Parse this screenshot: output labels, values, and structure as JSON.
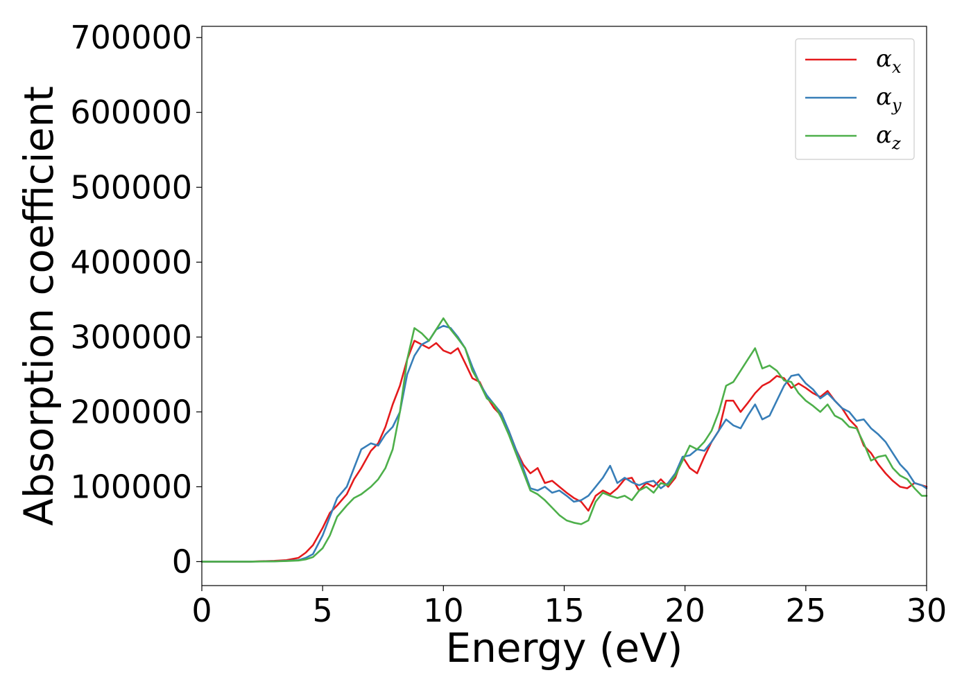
{
  "chart_data": {
    "type": "line",
    "title": "",
    "xlabel": "Energy (eV)",
    "ylabel": "Absorption coefficient",
    "xlim": [
      0,
      30
    ],
    "ylim": [
      -32000,
      715000
    ],
    "xticks": [
      0,
      5,
      10,
      15,
      20,
      25,
      30
    ],
    "yticks": [
      0,
      100000,
      200000,
      300000,
      400000,
      500000,
      600000,
      700000
    ],
    "grid": false,
    "legend_position": "top-right",
    "series": [
      {
        "name": "αx",
        "legend_base": "α",
        "legend_sub": "x",
        "color": "#e41a1c",
        "x": [
          0,
          1,
          2,
          3,
          3.5,
          4,
          4.3,
          4.6,
          5,
          5.3,
          5.6,
          6,
          6.3,
          6.6,
          7,
          7.3,
          7.6,
          7.9,
          8.2,
          8.5,
          8.8,
          9.1,
          9.4,
          9.7,
          10,
          10.3,
          10.6,
          10.9,
          11.2,
          11.5,
          11.8,
          12.1,
          12.4,
          12.7,
          13,
          13.3,
          13.6,
          13.9,
          14.2,
          14.5,
          14.8,
          15.1,
          15.4,
          15.7,
          16,
          16.3,
          16.6,
          16.9,
          17.2,
          17.5,
          17.8,
          18.1,
          18.4,
          18.7,
          19,
          19.3,
          19.6,
          19.9,
          20.2,
          20.5,
          20.8,
          21.1,
          21.4,
          21.7,
          22,
          22.3,
          22.6,
          22.9,
          23.2,
          23.5,
          23.8,
          24.1,
          24.4,
          24.7,
          25,
          25.3,
          25.6,
          25.9,
          26.2,
          26.5,
          26.8,
          27.1,
          27.4,
          27.7,
          28,
          28.3,
          28.6,
          28.9,
          29.2,
          29.5,
          29.8,
          30
        ],
        "y": [
          0,
          0,
          0,
          1000,
          2000,
          5000,
          12000,
          22000,
          45000,
          65000,
          75000,
          90000,
          110000,
          125000,
          148000,
          158000,
          180000,
          210000,
          235000,
          270000,
          295000,
          290000,
          285000,
          292000,
          282000,
          278000,
          285000,
          265000,
          245000,
          240000,
          220000,
          205000,
          195000,
          175000,
          150000,
          130000,
          118000,
          125000,
          105000,
          108000,
          100000,
          92000,
          85000,
          80000,
          68000,
          88000,
          95000,
          90000,
          98000,
          110000,
          112000,
          95000,
          105000,
          100000,
          110000,
          100000,
          112000,
          140000,
          125000,
          118000,
          140000,
          160000,
          175000,
          215000,
          215000,
          200000,
          212000,
          225000,
          235000,
          240000,
          248000,
          245000,
          232000,
          238000,
          232000,
          225000,
          220000,
          228000,
          215000,
          205000,
          190000,
          180000,
          155000,
          145000,
          130000,
          118000,
          108000,
          100000,
          98000,
          105000,
          102000,
          100000
        ]
      },
      {
        "name": "αy",
        "legend_base": "α",
        "legend_sub": "y",
        "color": "#377eb8",
        "x": [
          0,
          1,
          2,
          3,
          3.5,
          4,
          4.3,
          4.6,
          5,
          5.3,
          5.6,
          6,
          6.3,
          6.6,
          7,
          7.3,
          7.6,
          7.9,
          8.2,
          8.5,
          8.8,
          9.1,
          9.4,
          9.7,
          10,
          10.3,
          10.6,
          10.9,
          11.2,
          11.5,
          11.8,
          12.1,
          12.4,
          12.7,
          13,
          13.3,
          13.6,
          13.9,
          14.2,
          14.5,
          14.8,
          15.1,
          15.4,
          15.7,
          16,
          16.3,
          16.6,
          16.9,
          17.2,
          17.5,
          17.8,
          18.1,
          18.4,
          18.7,
          19,
          19.3,
          19.6,
          19.9,
          20.2,
          20.5,
          20.8,
          21.1,
          21.4,
          21.7,
          22,
          22.3,
          22.6,
          22.9,
          23.2,
          23.5,
          23.8,
          24.1,
          24.4,
          24.7,
          25,
          25.3,
          25.6,
          25.9,
          26.2,
          26.5,
          26.8,
          27.1,
          27.4,
          27.7,
          28,
          28.3,
          28.6,
          28.9,
          29.2,
          29.5,
          29.8,
          30
        ],
        "y": [
          0,
          0,
          0,
          500,
          1000,
          2000,
          5000,
          10000,
          35000,
          60000,
          85000,
          100000,
          125000,
          150000,
          158000,
          155000,
          170000,
          180000,
          200000,
          250000,
          275000,
          290000,
          295000,
          310000,
          315000,
          312000,
          300000,
          285000,
          260000,
          238000,
          222000,
          210000,
          198000,
          175000,
          150000,
          125000,
          98000,
          95000,
          100000,
          92000,
          95000,
          88000,
          80000,
          82000,
          88000,
          100000,
          112000,
          128000,
          105000,
          112000,
          106000,
          102000,
          106000,
          108000,
          98000,
          105000,
          118000,
          140000,
          142000,
          150000,
          148000,
          160000,
          175000,
          190000,
          182000,
          178000,
          195000,
          210000,
          190000,
          195000,
          215000,
          235000,
          248000,
          250000,
          238000,
          230000,
          218000,
          225000,
          215000,
          205000,
          200000,
          188000,
          190000,
          178000,
          170000,
          160000,
          145000,
          130000,
          120000,
          105000,
          102000,
          98000
        ]
      },
      {
        "name": "αz",
        "legend_base": "α",
        "legend_sub": "z",
        "color": "#4daf4a",
        "x": [
          0,
          1,
          2,
          3,
          3.5,
          4,
          4.3,
          4.6,
          5,
          5.3,
          5.6,
          6,
          6.3,
          6.6,
          7,
          7.3,
          7.6,
          7.9,
          8.2,
          8.5,
          8.8,
          9.1,
          9.4,
          9.7,
          10,
          10.3,
          10.6,
          10.9,
          11.2,
          11.5,
          11.8,
          12.1,
          12.4,
          12.7,
          13,
          13.3,
          13.6,
          13.9,
          14.2,
          14.5,
          14.8,
          15.1,
          15.4,
          15.7,
          16,
          16.3,
          16.6,
          16.9,
          17.2,
          17.5,
          17.8,
          18.1,
          18.4,
          18.7,
          19,
          19.3,
          19.6,
          19.9,
          20.2,
          20.5,
          20.8,
          21.1,
          21.4,
          21.7,
          22,
          22.3,
          22.6,
          22.9,
          23.2,
          23.5,
          23.8,
          24.1,
          24.4,
          24.7,
          25,
          25.3,
          25.6,
          25.9,
          26.2,
          26.5,
          26.8,
          27.1,
          27.4,
          27.7,
          28,
          28.3,
          28.6,
          28.9,
          29.2,
          29.5,
          29.8,
          30
        ],
        "y": [
          0,
          0,
          0,
          300,
          800,
          1500,
          3000,
          6000,
          18000,
          35000,
          60000,
          75000,
          85000,
          90000,
          100000,
          110000,
          125000,
          150000,
          200000,
          270000,
          312000,
          305000,
          295000,
          310000,
          325000,
          310000,
          298000,
          285000,
          255000,
          238000,
          218000,
          210000,
          192000,
          170000,
          145000,
          120000,
          95000,
          90000,
          82000,
          72000,
          62000,
          55000,
          52000,
          50000,
          55000,
          80000,
          92000,
          88000,
          85000,
          88000,
          82000,
          95000,
          100000,
          92000,
          105000,
          102000,
          115000,
          135000,
          155000,
          150000,
          160000,
          175000,
          200000,
          235000,
          240000,
          255000,
          270000,
          285000,
          258000,
          262000,
          255000,
          242000,
          240000,
          225000,
          215000,
          208000,
          200000,
          210000,
          195000,
          190000,
          180000,
          178000,
          158000,
          135000,
          140000,
          142000,
          125000,
          115000,
          110000,
          98000,
          88000,
          88000
        ]
      }
    ]
  }
}
